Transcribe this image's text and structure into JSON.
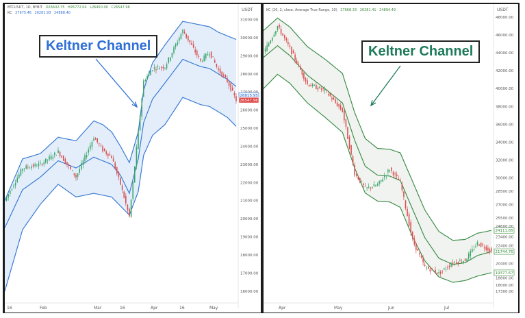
{
  "left": {
    "legend_line1": [
      "BTCUSDT, 1D, BYBIT",
      "O26602.75",
      "H26772.04",
      "L26450.00",
      "C26547.96"
    ],
    "legend_line2": [
      "KC",
      "27675.46",
      "26281.93",
      "24888.40"
    ],
    "currency": "USDT",
    "callout": "Keltner Channel",
    "callout_color": "#2f6fd6",
    "price_tags": [
      {
        "text": "26815.95",
        "value": 26815.95,
        "bg": "#e9f1fb",
        "fg": "#2f6fd6"
      },
      {
        "text": "26547.96",
        "value": 26547.96,
        "bg": "#e04848",
        "fg": "#ffffff"
      }
    ]
  },
  "right": {
    "legend_line1": [
      "KC (20, 2, close, Average True Range, 10)",
      "27668.33",
      "26281.41",
      "24894.49"
    ],
    "currency": "USDT",
    "callout": "Keltner Channel",
    "callout_color": "#1f7a5a",
    "price_tags": [
      {
        "text": "24111.85",
        "value": 24111.85,
        "bg": "#ffffff",
        "fg": "#3a8a3a"
      },
      {
        "text": "21744.76",
        "value": 21744.76,
        "bg": "#ffffff",
        "fg": "#3a8a3a"
      },
      {
        "text": "19377.67",
        "value": 19377.67,
        "bg": "#ffffff",
        "fg": "#3a8a3a"
      }
    ]
  },
  "chart_data": [
    {
      "type": "candlestick",
      "title": "BTCUSDT, 1D, BYBIT",
      "indicator": "Keltner Channel",
      "y_ticks": [
        31000,
        30000,
        29000,
        28000,
        27000,
        26000,
        25000,
        24000,
        23000,
        22000,
        21000,
        20000,
        19000,
        18000,
        17000,
        16000
      ],
      "ylim": [
        15500,
        31700
      ],
      "x_ticks": [
        "16",
        "Feb",
        "Mar",
        "16",
        "Apr",
        "16",
        "May"
      ],
      "colors": {
        "band": "#3a7bd5",
        "fill": "#e3eefa",
        "up": "#3aa46a",
        "down": "#d84c4c"
      },
      "x_anchor": [
        0,
        10,
        20,
        30,
        40,
        50,
        55,
        60,
        65,
        70,
        75,
        78,
        83,
        90,
        100,
        110,
        115,
        120,
        125,
        130
      ],
      "close_anchor": [
        21000,
        22800,
        23000,
        23700,
        22300,
        24500,
        23800,
        23400,
        21900,
        20100,
        24800,
        27600,
        28300,
        28400,
        30400,
        28700,
        29200,
        28200,
        27600,
        26548
      ],
      "middle_anchor": [
        19500,
        21600,
        22300,
        23200,
        22800,
        23400,
        23200,
        23000,
        22400,
        21400,
        23300,
        25300,
        26600,
        27500,
        28800,
        28400,
        28300,
        28000,
        27700,
        27300
      ],
      "upper_anchor": [
        21000,
        23300,
        23600,
        24500,
        24300,
        25400,
        25200,
        24800,
        24000,
        23100,
        24800,
        27100,
        28600,
        29600,
        30900,
        30700,
        30600,
        30300,
        30100,
        29900
      ],
      "lower_anchor": [
        16000,
        19400,
        20800,
        21900,
        21200,
        21400,
        21300,
        21200,
        20700,
        20200,
        21500,
        23500,
        24600,
        25200,
        26700,
        26300,
        26200,
        25900,
        25600,
        25100
      ]
    },
    {
      "type": "candlestick",
      "title": "KC (20, 2, close, Average True Range, 10)",
      "indicator": "Keltner Channel",
      "y_ticks": [
        48000,
        46000,
        44000,
        42000,
        40000,
        38000,
        36000,
        34000,
        32000,
        30000,
        28500,
        27000,
        25500,
        24600,
        23400,
        22400,
        21600,
        20400,
        19400,
        18800,
        18000,
        17300
      ],
      "tick_positions": [
        48000,
        46000,
        44000,
        42000,
        40000,
        38000,
        36000,
        34000,
        32000,
        30000,
        28500,
        27000,
        25500,
        24600,
        23400,
        22400,
        21600,
        20400,
        19400,
        18800,
        18000,
        17300
      ],
      "ylim": [
        16300,
        49000
      ],
      "x_ticks": [
        "Apr",
        "May",
        "Jun",
        "Jul"
      ],
      "colors": {
        "band": "#3f8f4a",
        "fill": "#f0f3f0",
        "up": "#3aa46a",
        "down": "#d84c4c"
      },
      "x_anchor": [
        0,
        8,
        15,
        25,
        35,
        45,
        52,
        58,
        65,
        72,
        78,
        85,
        92,
        100,
        108,
        115,
        122,
        130
      ],
      "close_anchor": [
        44000,
        47000,
        44500,
        40500,
        39800,
        37500,
        30500,
        28800,
        29200,
        31000,
        29500,
        23000,
        20000,
        19300,
        20500,
        20800,
        22700,
        21800
      ],
      "middle_anchor": [
        43500,
        44800,
        43700,
        41500,
        40000,
        38400,
        34200,
        31300,
        30300,
        30200,
        29700,
        26500,
        23300,
        21000,
        20300,
        20500,
        21300,
        21745
      ],
      "upper_anchor": [
        46500,
        47900,
        46900,
        44700,
        43300,
        41700,
        37300,
        34400,
        33300,
        33200,
        32800,
        29600,
        26400,
        24000,
        23000,
        23100,
        23800,
        24112
      ],
      "lower_anchor": [
        40000,
        41600,
        40600,
        38400,
        36800,
        35100,
        31100,
        28300,
        27400,
        27300,
        26700,
        23400,
        20700,
        18900,
        18300,
        18500,
        19000,
        19378
      ]
    }
  ]
}
